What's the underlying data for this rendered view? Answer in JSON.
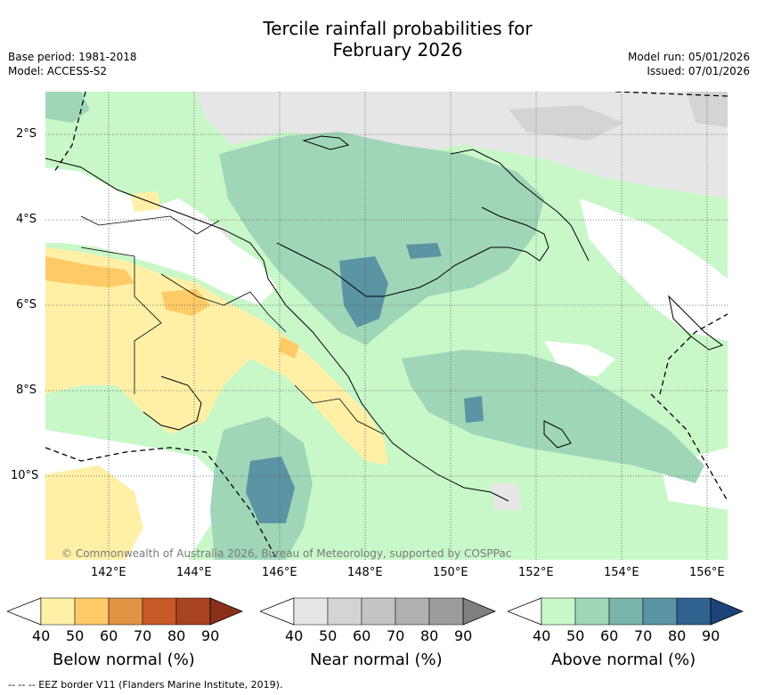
{
  "title": {
    "line1": "Tercile rainfall probabilities for",
    "line2": "February 2026"
  },
  "meta": {
    "base_period": "Base period: 1981-2018",
    "model": "Model: ACCESS-S2",
    "model_run": "Model run: 05/01/2026",
    "issued": "Issued: 07/01/2026"
  },
  "map": {
    "lon_ticks": [
      "142°E",
      "144°E",
      "146°E",
      "148°E",
      "150°E",
      "152°E",
      "154°E",
      "156°E"
    ],
    "lat_ticks": [
      "2°S",
      "4°S",
      "6°S",
      "8°S",
      "10°S"
    ],
    "copyright": "© Commonwealth of Australia 2026, Bureau of Meteorology, supported by COSPPac"
  },
  "colorbars": [
    {
      "name": "below",
      "title": "Below normal (%)",
      "labels": [
        "40",
        "50",
        "60",
        "70",
        "80",
        "90"
      ],
      "colors": [
        "#fff0a6",
        "#fdcb66",
        "#e09343",
        "#c65a28",
        "#a84321",
        "#8a2f1a"
      ]
    },
    {
      "name": "near",
      "title": "Near normal (%)",
      "labels": [
        "40",
        "50",
        "60",
        "70",
        "80",
        "90"
      ],
      "colors": [
        "#e6e6e6",
        "#d4d4d4",
        "#c4c4c4",
        "#b0b0b0",
        "#9c9c9c",
        "#7f7f7f"
      ]
    },
    {
      "name": "above",
      "title": "Above normal (%)",
      "labels": [
        "40",
        "50",
        "60",
        "70",
        "80",
        "90"
      ],
      "colors": [
        "#c8f8c8",
        "#9fd6b8",
        "#78b4a8",
        "#5b94a2",
        "#30628f",
        "#1c4478"
      ]
    }
  ],
  "footer": "--  --  -- EEZ border V11 (Flanders Marine Institute, 2019)."
}
